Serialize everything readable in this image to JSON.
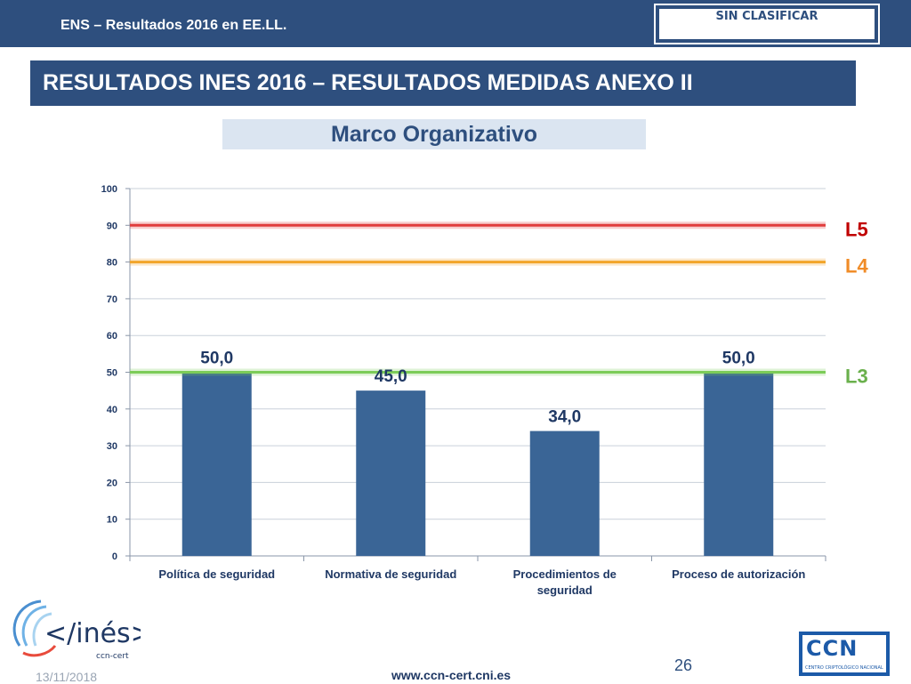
{
  "header": {
    "title": "ENS – Resultados 2016 en EE.LL.",
    "classification": "SIN CLASIFICAR"
  },
  "section_title": "RESULTADOS INES 2016 – RESULTADOS MEDIDAS ANEXO II",
  "subtitle": "Marco Organizativo",
  "chart_data": {
    "type": "bar",
    "categories": [
      "Política de seguridad",
      "Normativa de seguridad",
      "Procedimientos de seguridad",
      "Proceso de autorización"
    ],
    "category_lines": [
      [
        "Política de seguridad"
      ],
      [
        "Normativa de seguridad"
      ],
      [
        "Procedimientos de",
        "seguridad"
      ],
      [
        "Proceso de autorización"
      ]
    ],
    "values": [
      50.0,
      45.0,
      34.0,
      50.0
    ],
    "data_labels": [
      "50,0",
      "45,0",
      "34,0",
      "50,0"
    ],
    "ylim": [
      0,
      100
    ],
    "yticks": [
      0,
      10,
      20,
      30,
      40,
      50,
      60,
      70,
      80,
      90,
      100
    ],
    "grid": true,
    "bar_color": "#3a6596",
    "reference_lines": [
      {
        "label": "L5",
        "value": 90,
        "color": "#e03c3c",
        "label_color": "#c00000"
      },
      {
        "label": "L4",
        "value": 80,
        "color": "#f2a52a",
        "label_color": "#f08c28"
      },
      {
        "label": "L3",
        "value": 50,
        "color": "#7ccc58",
        "label_color": "#6ab04c"
      }
    ]
  },
  "logos": {
    "ines": {
      "text": "</inés>",
      "sub": "ccn-cert"
    },
    "ccn": {
      "letters": "CCN",
      "sub": "CENTRO CRIPTOLÓGICO NACIONAL"
    }
  },
  "footer": {
    "date": "13/11/2018",
    "url": "www.ccn-cert.cni.es",
    "page": "26"
  }
}
